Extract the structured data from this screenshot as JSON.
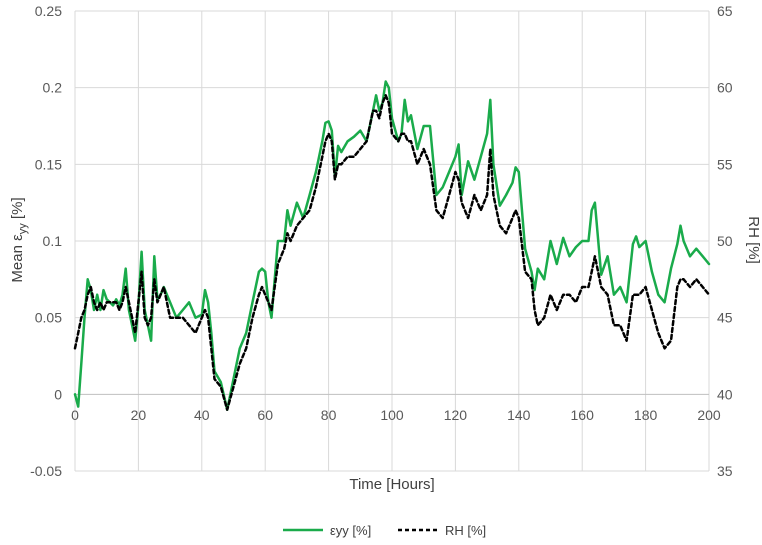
{
  "chart_data": {
    "type": "line",
    "xlabel": "Time [Hours]",
    "ylabel_left": "Mean ε",
    "ylabel_left_sub": "yy",
    "ylabel_left_unit": " [%]",
    "ylabel_right": "RH [%]",
    "xlim": [
      0,
      200
    ],
    "ylim_left": [
      -0.05,
      0.25
    ],
    "ylim_right": [
      35,
      65
    ],
    "x_ticks": [
      "0",
      "20",
      "40",
      "60",
      "80",
      "100",
      "120",
      "140",
      "160",
      "180",
      "200"
    ],
    "y_left_ticks": [
      "-0.05",
      "0",
      "0.05",
      "0.1",
      "0.15",
      "0.2",
      "0.25"
    ],
    "y_right_ticks": [
      "35",
      "40",
      "45",
      "50",
      "55",
      "60",
      "65"
    ],
    "grid": true,
    "legend_position": "bottom",
    "series": [
      {
        "name": "εyy [%]",
        "axis": "left",
        "color": "#1aab4b",
        "style": "solid",
        "x": [
          0,
          1,
          2,
          3,
          4,
          5,
          6,
          7,
          8,
          9,
          10,
          11,
          12,
          13,
          14,
          15,
          16,
          17,
          18,
          19,
          20,
          21,
          22,
          23,
          24,
          25,
          26,
          27,
          28,
          29,
          30,
          32,
          34,
          36,
          38,
          40,
          41,
          42,
          43,
          44,
          46,
          48,
          50,
          52,
          54,
          56,
          58,
          59,
          60,
          61,
          62,
          64,
          66,
          67,
          68,
          70,
          72,
          74,
          76,
          78,
          79,
          80,
          81,
          82,
          83,
          84,
          86,
          88,
          90,
          92,
          94,
          95,
          96,
          97,
          98,
          99,
          100,
          102,
          103,
          104,
          105,
          106,
          108,
          110,
          112,
          114,
          116,
          118,
          120,
          121,
          122,
          124,
          126,
          128,
          130,
          131,
          132,
          134,
          136,
          138,
          139,
          140,
          142,
          144,
          145,
          146,
          148,
          150,
          152,
          154,
          156,
          158,
          160,
          162,
          163,
          164,
          166,
          168,
          170,
          172,
          174,
          176,
          177,
          178,
          180,
          182,
          184,
          186,
          188,
          190,
          191,
          192,
          194,
          196,
          198,
          200
        ],
        "values": [
          0.0,
          -0.008,
          0.02,
          0.05,
          0.075,
          0.068,
          0.055,
          0.065,
          0.055,
          0.068,
          0.062,
          0.06,
          0.058,
          0.062,
          0.058,
          0.065,
          0.082,
          0.055,
          0.045,
          0.035,
          0.058,
          0.093,
          0.055,
          0.045,
          0.035,
          0.09,
          0.062,
          0.065,
          0.07,
          0.065,
          0.06,
          0.05,
          0.055,
          0.06,
          0.05,
          0.052,
          0.068,
          0.06,
          0.04,
          0.015,
          0.008,
          -0.01,
          0.01,
          0.03,
          0.04,
          0.06,
          0.08,
          0.082,
          0.08,
          0.06,
          0.05,
          0.1,
          0.1,
          0.12,
          0.11,
          0.125,
          0.115,
          0.13,
          0.145,
          0.165,
          0.177,
          0.178,
          0.172,
          0.142,
          0.162,
          0.158,
          0.165,
          0.168,
          0.172,
          0.165,
          0.185,
          0.195,
          0.185,
          0.19,
          0.204,
          0.2,
          0.18,
          0.165,
          0.17,
          0.192,
          0.178,
          0.182,
          0.16,
          0.175,
          0.175,
          0.13,
          0.135,
          0.145,
          0.155,
          0.163,
          0.13,
          0.152,
          0.14,
          0.155,
          0.17,
          0.192,
          0.15,
          0.123,
          0.13,
          0.138,
          0.148,
          0.145,
          0.095,
          0.08,
          0.068,
          0.082,
          0.075,
          0.1,
          0.085,
          0.102,
          0.09,
          0.096,
          0.1,
          0.1,
          0.12,
          0.125,
          0.078,
          0.09,
          0.065,
          0.07,
          0.06,
          0.098,
          0.103,
          0.096,
          0.1,
          0.08,
          0.065,
          0.06,
          0.082,
          0.098,
          0.11,
          0.1,
          0.09,
          0.095,
          0.09,
          0.085
        ]
      },
      {
        "name": "RH [%]",
        "axis": "right",
        "color": "#000000",
        "style": "dashed",
        "x": [
          0,
          1,
          2,
          3,
          4,
          5,
          6,
          7,
          8,
          9,
          10,
          11,
          12,
          13,
          14,
          15,
          16,
          17,
          18,
          19,
          20,
          21,
          22,
          23,
          24,
          25,
          26,
          27,
          28,
          29,
          30,
          32,
          34,
          36,
          38,
          40,
          41,
          42,
          43,
          44,
          46,
          48,
          50,
          52,
          54,
          56,
          58,
          59,
          60,
          61,
          62,
          64,
          66,
          67,
          68,
          70,
          72,
          74,
          76,
          78,
          79,
          80,
          81,
          82,
          83,
          84,
          86,
          88,
          90,
          92,
          94,
          95,
          96,
          97,
          98,
          99,
          100,
          102,
          103,
          104,
          105,
          106,
          108,
          110,
          112,
          114,
          116,
          118,
          120,
          121,
          122,
          124,
          126,
          128,
          130,
          131,
          132,
          134,
          136,
          138,
          139,
          140,
          142,
          144,
          145,
          146,
          148,
          150,
          152,
          154,
          156,
          158,
          160,
          162,
          163,
          164,
          166,
          168,
          170,
          172,
          174,
          176,
          177,
          178,
          180,
          182,
          184,
          186,
          188,
          190,
          191,
          192,
          194,
          196,
          198,
          200
        ],
        "values": [
          43.0,
          44.0,
          45.0,
          45.5,
          46.5,
          47.0,
          46.0,
          45.5,
          46.0,
          45.5,
          46.0,
          46.0,
          46.0,
          46.0,
          45.5,
          46.0,
          47.0,
          46.0,
          45.0,
          44.0,
          46.0,
          48.0,
          45.0,
          44.5,
          45.0,
          47.5,
          46.0,
          46.5,
          47.0,
          46.0,
          45.0,
          45.0,
          45.0,
          44.5,
          44.0,
          45.0,
          45.5,
          45.0,
          43.0,
          41.0,
          40.5,
          39.0,
          40.5,
          42.0,
          43.0,
          45.0,
          46.5,
          47.0,
          46.5,
          46.0,
          45.5,
          48.5,
          49.5,
          50.5,
          50.0,
          51.0,
          51.5,
          52.0,
          53.5,
          55.5,
          56.5,
          57.0,
          56.5,
          54.0,
          55.0,
          55.0,
          55.5,
          55.5,
          56.0,
          56.5,
          58.5,
          58.5,
          58.0,
          59.0,
          59.5,
          59.0,
          57.0,
          56.5,
          57.0,
          57.0,
          56.5,
          56.5,
          55.0,
          56.0,
          55.0,
          52.0,
          51.5,
          53.0,
          54.5,
          54.0,
          52.5,
          51.5,
          53.0,
          52.0,
          53.0,
          56.0,
          53.0,
          51.0,
          50.5,
          51.5,
          52.0,
          51.5,
          48.0,
          47.5,
          45.5,
          44.5,
          45.0,
          46.5,
          45.5,
          46.5,
          46.5,
          46.0,
          47.0,
          47.0,
          48.0,
          49.0,
          47.0,
          46.5,
          44.5,
          44.5,
          43.5,
          46.5,
          46.5,
          46.5,
          47.0,
          45.5,
          44.0,
          43.0,
          43.5,
          47.0,
          47.5,
          47.5,
          47.0,
          47.5,
          47.0,
          46.5
        ]
      }
    ]
  }
}
